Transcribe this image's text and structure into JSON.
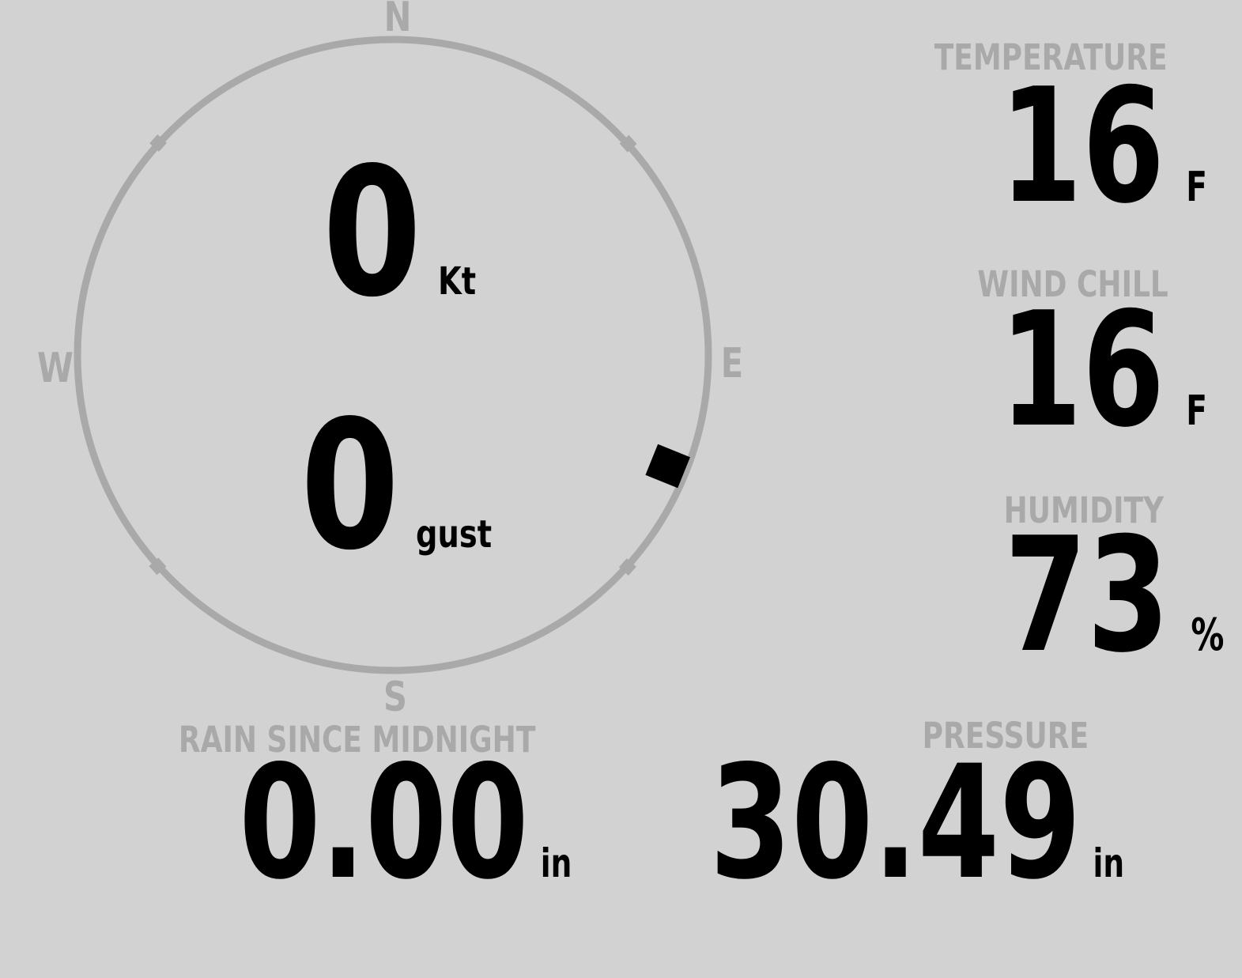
{
  "colors": {
    "background": "#d2d2d2",
    "muted_gray": "#a9a9a9",
    "value_black": "#000000"
  },
  "compass": {
    "north_label": "N",
    "east_label": "E",
    "south_label": "S",
    "west_label": "W",
    "wind_speed": "0",
    "wind_speed_unit": "Kt",
    "wind_gust": "0",
    "wind_gust_unit": "gust",
    "wind_direction_deg": 112
  },
  "metrics": {
    "temperature": {
      "label": "TEMPERATURE",
      "value": "16",
      "unit": "F"
    },
    "wind_chill": {
      "label": "WIND CHILL",
      "value": "16",
      "unit": "F"
    },
    "humidity": {
      "label": "HUMIDITY",
      "value": "73",
      "unit": "%"
    },
    "rain_since_midnight": {
      "label": "RAIN SINCE MIDNIGHT",
      "value": "0.00",
      "unit": "in"
    },
    "pressure": {
      "label": "PRESSURE",
      "value": "30.49",
      "unit": "in"
    }
  }
}
